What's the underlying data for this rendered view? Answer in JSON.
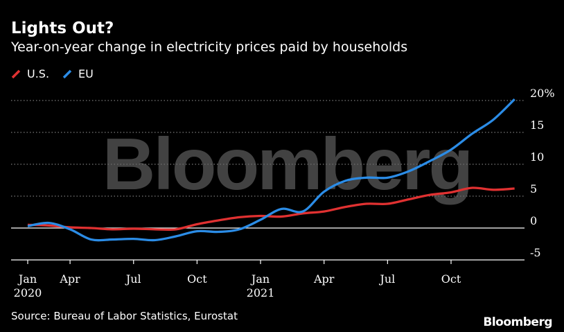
{
  "chart_data": {
    "type": "line",
    "title": "Lights Out?",
    "subtitle": "Year-on-year change in electricity prices paid by households",
    "xlabel": "",
    "ylabel": "",
    "ylim": [
      -5,
      20
    ],
    "y_ticks": [
      {
        "value": -5,
        "label": "-5"
      },
      {
        "value": 0,
        "label": "0"
      },
      {
        "value": 5,
        "label": "5"
      },
      {
        "value": 10,
        "label": "10"
      },
      {
        "value": 15,
        "label": "15"
      },
      {
        "value": 20,
        "label": "20%"
      }
    ],
    "x_ticks": [
      {
        "month": 0,
        "label": "Jan",
        "year_label": "2020"
      },
      {
        "month": 2,
        "label": "Apr",
        "year_label": ""
      },
      {
        "month": 5,
        "label": "Jul",
        "year_label": ""
      },
      {
        "month": 8,
        "label": "Oct",
        "year_label": ""
      },
      {
        "month": 11,
        "label": "Jan",
        "year_label": "2021"
      },
      {
        "month": 14,
        "label": "Apr",
        "year_label": ""
      },
      {
        "month": 17,
        "label": "Jul",
        "year_label": ""
      },
      {
        "month": 20,
        "label": "Oct",
        "year_label": ""
      }
    ],
    "grid": true,
    "legend_position": "top-left",
    "x": [
      "2020-01",
      "2020-02",
      "2020-03",
      "2020-04",
      "2020-05",
      "2020-06",
      "2020-07",
      "2020-08",
      "2020-09",
      "2020-10",
      "2020-11",
      "2020-12",
      "2021-01",
      "2021-02",
      "2021-03",
      "2021-04",
      "2021-05",
      "2021-06",
      "2021-07",
      "2021-08",
      "2021-09",
      "2021-10",
      "2021-11",
      "2021-12"
    ],
    "series": [
      {
        "name": "U.S.",
        "color": "#e03131",
        "values": [
          0.5,
          0.4,
          0.1,
          0.0,
          -0.2,
          -0.1,
          -0.2,
          -0.2,
          0.6,
          1.2,
          1.7,
          1.9,
          1.8,
          2.3,
          2.6,
          3.3,
          3.8,
          3.8,
          4.5,
          5.2,
          5.6,
          6.3,
          6.0,
          6.2
        ]
      },
      {
        "name": "EU",
        "color": "#2b8ce6",
        "values": [
          0.3,
          0.8,
          -0.2,
          -1.8,
          -1.8,
          -1.7,
          -1.9,
          -1.3,
          -0.5,
          -0.6,
          -0.2,
          1.3,
          3.0,
          2.6,
          5.7,
          7.4,
          7.9,
          7.9,
          8.9,
          10.5,
          12.3,
          14.8,
          17.0,
          20.2
        ]
      }
    ]
  },
  "watermark": "Bloomberg",
  "source": "Source: Bureau of Labor Statistics, Eurostat",
  "brand": "Bloomberg"
}
